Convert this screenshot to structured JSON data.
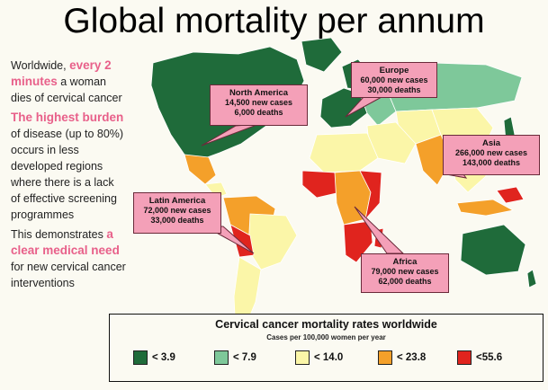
{
  "title": "Global mortality per annum",
  "left_text": {
    "p1_a": "Worldwide,",
    "p1_hl": "every 2 minutes",
    "p1_b": "a woman dies of cervical cancer",
    "p2_hl": "The highest burden",
    "p2_b": "of disease (up to 80%) occurs in less developed regions where there is a lack of effective screening programmes",
    "p3_a": "This demonstrates",
    "p3_hl": "a clear medical need",
    "p3_b": "for new cervical cancer interventions"
  },
  "callouts": {
    "north_america": {
      "name": "North America",
      "cases": "14,500 new cases",
      "deaths": "6,000 deaths"
    },
    "europe": {
      "name": "Europe",
      "cases": "60,000 new cases",
      "deaths": "30,000 deaths"
    },
    "asia": {
      "name": "Asia",
      "cases": "266,000 new cases",
      "deaths": "143,000 deaths"
    },
    "latin_america": {
      "name": "Latin America",
      "cases": "72,000 new cases",
      "deaths": "33,000 deaths"
    },
    "africa": {
      "name": "Africa",
      "cases": "79,000 new cases",
      "deaths": "62,000 deaths"
    }
  },
  "legend": {
    "title": "Cervical cancer mortality rates worldwide",
    "subtitle": "Cases per 100,000 women per year",
    "items": [
      {
        "label": "< 3.9",
        "color": "#1f6b3a"
      },
      {
        "label": "< 7.9",
        "color": "#7ec89a"
      },
      {
        "label": "< 14.0",
        "color": "#fbf6a8"
      },
      {
        "label": "< 23.8",
        "color": "#f4a02a"
      },
      {
        "label": "<55.6",
        "color": "#e0241e"
      }
    ]
  }
}
